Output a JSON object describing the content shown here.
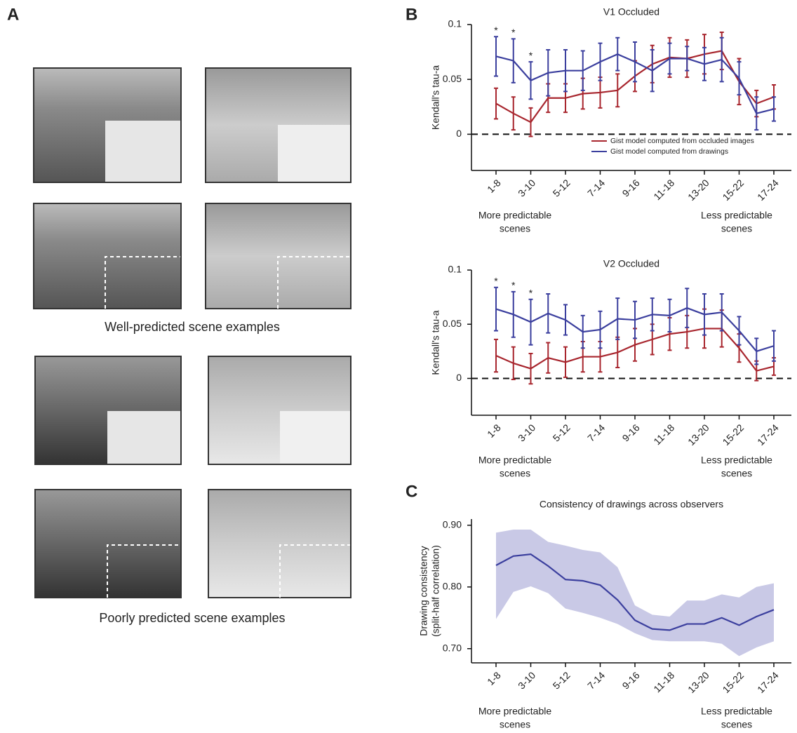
{
  "figure": {
    "panel_labels": [
      "A",
      "B",
      "C"
    ],
    "captions": [
      "Well-predicted scene examples",
      "Poorly predicted scene examples"
    ]
  },
  "chart_data": [
    {
      "type": "line",
      "title": "V1 Occluded",
      "ylabel": [
        "Kendall's tau-a"
      ],
      "categories": [
        "1-8",
        null,
        "3-10",
        null,
        "5-12",
        null,
        "7-14",
        null,
        "9-16",
        null,
        "11-18",
        null,
        "13-20",
        null,
        "15-22",
        null,
        "17-24"
      ],
      "ylim": [
        -0.033,
        0.1
      ],
      "yticks": [
        0,
        0.05,
        0.1
      ],
      "hline": 0,
      "legend": "lower right",
      "significance_labels": [
        "*",
        "*",
        "*",
        null,
        null,
        null,
        null,
        null,
        null,
        null,
        null,
        null,
        null,
        null,
        null,
        null,
        null
      ],
      "annotations": [
        [
          "More predictable",
          "scenes"
        ],
        [
          "Less predictable",
          "scenes"
        ]
      ],
      "series": [
        {
          "name": "Gist model computed from occluded images",
          "color": "#a8262e",
          "values": [
            0.028,
            0.019,
            0.011,
            0.033,
            0.033,
            0.037,
            0.038,
            0.04,
            0.053,
            0.064,
            0.07,
            0.069,
            0.073,
            0.076,
            0.048,
            0.028,
            0.034
          ],
          "errors": [
            0.014,
            0.015,
            0.013,
            0.013,
            0.013,
            0.014,
            0.014,
            0.015,
            0.014,
            0.017,
            0.018,
            0.017,
            0.018,
            0.017,
            0.021,
            0.012,
            0.011
          ]
        },
        {
          "name": "Gist model computed from drawings",
          "color": "#3b3f9e",
          "values": [
            0.071,
            0.067,
            0.049,
            0.056,
            0.058,
            0.058,
            0.066,
            0.073,
            0.066,
            0.058,
            0.069,
            0.069,
            0.064,
            0.068,
            0.051,
            0.019,
            0.023
          ],
          "errors": [
            0.018,
            0.02,
            0.017,
            0.021,
            0.019,
            0.018,
            0.017,
            0.015,
            0.018,
            0.019,
            0.014,
            0.011,
            0.015,
            0.02,
            0.015,
            0.015,
            0.011
          ]
        }
      ]
    },
    {
      "type": "line",
      "title": "V2 Occluded",
      "ylabel": [
        "Kendall's tau-a"
      ],
      "categories": [
        "1-8",
        null,
        "3-10",
        null,
        "5-12",
        null,
        "7-14",
        null,
        "9-16",
        null,
        "11-18",
        null,
        "13-20",
        null,
        "15-22",
        null,
        "17-24"
      ],
      "ylim": [
        -0.034,
        0.1
      ],
      "yticks": [
        0,
        0.05,
        0.1
      ],
      "hline": 0,
      "significance_labels": [
        "*",
        "*",
        "*",
        null,
        null,
        null,
        null,
        null,
        null,
        null,
        null,
        null,
        null,
        null,
        null,
        null,
        null
      ],
      "annotations": [
        [
          "More predictable",
          "scenes"
        ],
        [
          "Less predictable",
          "scenes"
        ]
      ],
      "series": [
        {
          "color": "#a8262e",
          "values": [
            0.021,
            0.014,
            0.009,
            0.019,
            0.015,
            0.02,
            0.02,
            0.024,
            0.031,
            0.036,
            0.041,
            0.043,
            0.046,
            0.046,
            0.028,
            0.007,
            0.011
          ],
          "errors": [
            0.015,
            0.015,
            0.014,
            0.014,
            0.014,
            0.014,
            0.014,
            0.014,
            0.015,
            0.014,
            0.015,
            0.015,
            0.018,
            0.017,
            0.013,
            0.009,
            0.008
          ]
        },
        {
          "color": "#3b3f9e",
          "values": [
            0.064,
            0.059,
            0.052,
            0.06,
            0.054,
            0.043,
            0.045,
            0.055,
            0.054,
            0.059,
            0.058,
            0.065,
            0.059,
            0.061,
            0.044,
            0.025,
            0.03
          ],
          "errors": [
            0.02,
            0.021,
            0.021,
            0.018,
            0.014,
            0.015,
            0.017,
            0.019,
            0.017,
            0.015,
            0.015,
            0.018,
            0.019,
            0.017,
            0.013,
            0.012,
            0.014
          ]
        }
      ]
    },
    {
      "type": "line",
      "title": "Consistency of drawings across observers",
      "ylabel": [
        "Drawing consistency",
        "(split-half correlation)"
      ],
      "categories": [
        "1-8",
        null,
        "3-10",
        null,
        "5-12",
        null,
        "7-14",
        null,
        "9-16",
        null,
        "11-18",
        null,
        "13-20",
        null,
        "15-22",
        null,
        "17-24"
      ],
      "ylim": [
        0.677,
        0.91
      ],
      "yticks": [
        {
          "value": 0.7,
          "label": "0.70"
        },
        {
          "value": 0.8,
          "label": "0.80"
        },
        {
          "value": 0.9,
          "label": "0.90"
        }
      ],
      "annotations": [
        [
          "More predictable",
          "scenes"
        ],
        [
          "Less predictable",
          "scenes"
        ]
      ],
      "band": {
        "color": "#c9c9e6",
        "upper": [
          0.888,
          0.893,
          0.893,
          0.873,
          0.867,
          0.86,
          0.856,
          0.832,
          0.77,
          0.755,
          0.752,
          0.778,
          0.778,
          0.788,
          0.783,
          0.8,
          0.806
        ],
        "lower": [
          0.748,
          0.792,
          0.801,
          0.79,
          0.765,
          0.758,
          0.75,
          0.74,
          0.725,
          0.714,
          0.712,
          0.712,
          0.712,
          0.708,
          0.688,
          0.702,
          0.712
        ]
      },
      "series": [
        {
          "color": "#3b3f9e",
          "values": [
            0.835,
            0.85,
            0.853,
            0.834,
            0.812,
            0.81,
            0.803,
            0.779,
            0.746,
            0.732,
            0.73,
            0.74,
            0.74,
            0.75,
            0.738,
            0.752,
            0.763
          ]
        }
      ]
    }
  ]
}
